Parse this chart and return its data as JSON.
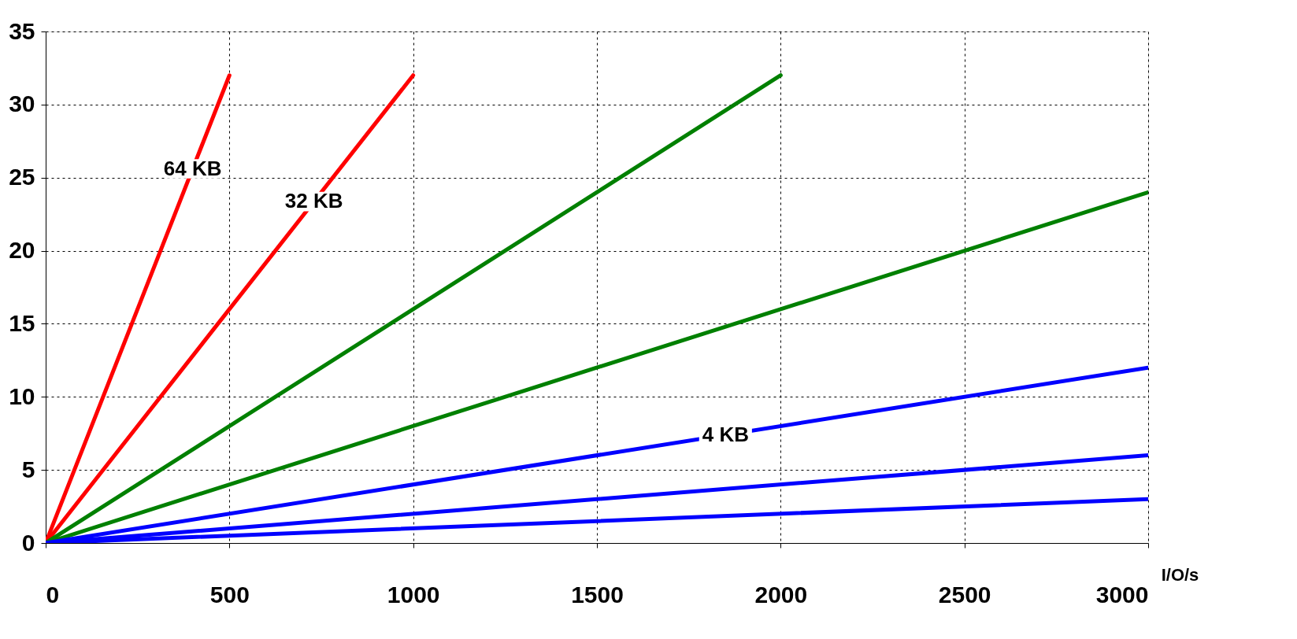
{
  "chart_data": {
    "type": "line",
    "xlabel": "I/O/s",
    "xlim": [
      0,
      3000
    ],
    "xticks": [
      0,
      500,
      1000,
      1500,
      2000,
      2500,
      3000
    ],
    "ylim": [
      0,
      35
    ],
    "yticks": [
      0,
      5,
      10,
      15,
      20,
      25,
      30,
      35
    ],
    "grid": true,
    "legend": false,
    "line_style": "solid",
    "marker": "none",
    "series": [
      {
        "color": "#ff0000",
        "x": [
          0,
          500
        ],
        "values": [
          0,
          32
        ]
      },
      {
        "color": "#ff0000",
        "x": [
          0,
          1000
        ],
        "values": [
          0,
          32
        ]
      },
      {
        "color": "#008000",
        "x": [
          0,
          2000
        ],
        "values": [
          0,
          32
        ]
      },
      {
        "color": "#008000",
        "x": [
          0,
          3000
        ],
        "values": [
          0,
          24
        ]
      },
      {
        "color": "#0000ff",
        "x": [
          0,
          3000
        ],
        "values": [
          0,
          12
        ]
      },
      {
        "color": "#0000ff",
        "x": [
          0,
          3000
        ],
        "values": [
          0,
          6
        ]
      },
      {
        "color": "#0000ff",
        "x": [
          0,
          3000
        ],
        "values": [
          0,
          3
        ]
      }
    ],
    "annotations": [
      {
        "text": "64 KB",
        "x": 400,
        "y": 25.6
      },
      {
        "text": "32 KB",
        "x": 730,
        "y": 23.36
      },
      {
        "text": "4 KB",
        "x": 1850,
        "y": 7.4
      }
    ]
  }
}
